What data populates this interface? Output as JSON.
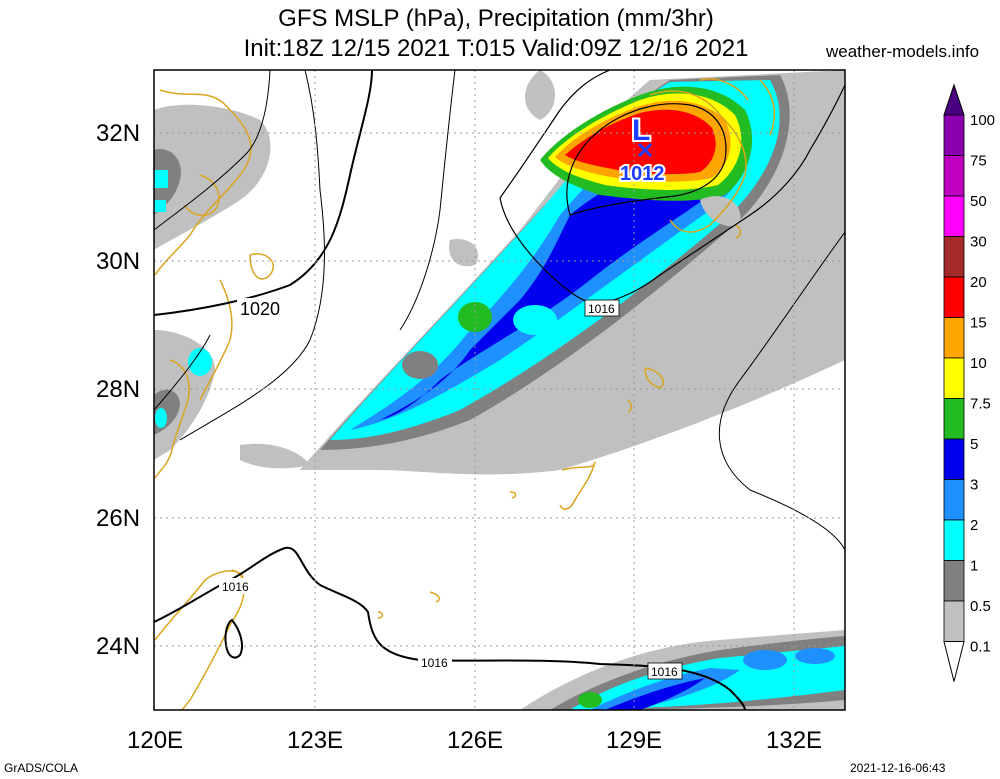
{
  "title": {
    "line1": "GFS MSLP (hPa), Precipitation (mm/3hr)",
    "line2": "Init:18Z 12/15 2021 T:015 Valid:09Z 12/16 2021"
  },
  "site": "weather-models.info",
  "footer": {
    "left": "GrADS/COLA",
    "right": "2021-12-16-06:43"
  },
  "map": {
    "lat_labels": [
      "32N",
      "30N",
      "28N",
      "26N",
      "24N"
    ],
    "lon_labels": [
      "120E",
      "123E",
      "126E",
      "129E",
      "132E"
    ],
    "lat_range": [
      23,
      33
    ],
    "lon_range": [
      120,
      133
    ],
    "low_center": {
      "symbol": "L",
      "pressure": "1012",
      "lon": 129.0,
      "lat": 31.7
    },
    "isobar_labels": [
      "1020",
      "1016",
      "1016",
      "1016",
      "1016"
    ]
  },
  "colorbar": {
    "levels": [
      "100",
      "75",
      "50",
      "30",
      "20",
      "15",
      "10",
      "7.5",
      "5",
      "3",
      "2",
      "1",
      "0.5",
      "0.1"
    ],
    "colors": [
      "#4b0082",
      "#8a00b0",
      "#c000c0",
      "#ff00ff",
      "#a52a2a",
      "#ff0000",
      "#ffa500",
      "#ffff00",
      "#22bb22",
      "#0000ee",
      "#1e90ff",
      "#00ffff",
      "#808080",
      "#c0c0c0",
      "#ffffff"
    ]
  },
  "colors": {
    "coast": "#daa520",
    "isobar": "#000000",
    "grid": "#999999",
    "low_symbol": "#1e3cff"
  }
}
